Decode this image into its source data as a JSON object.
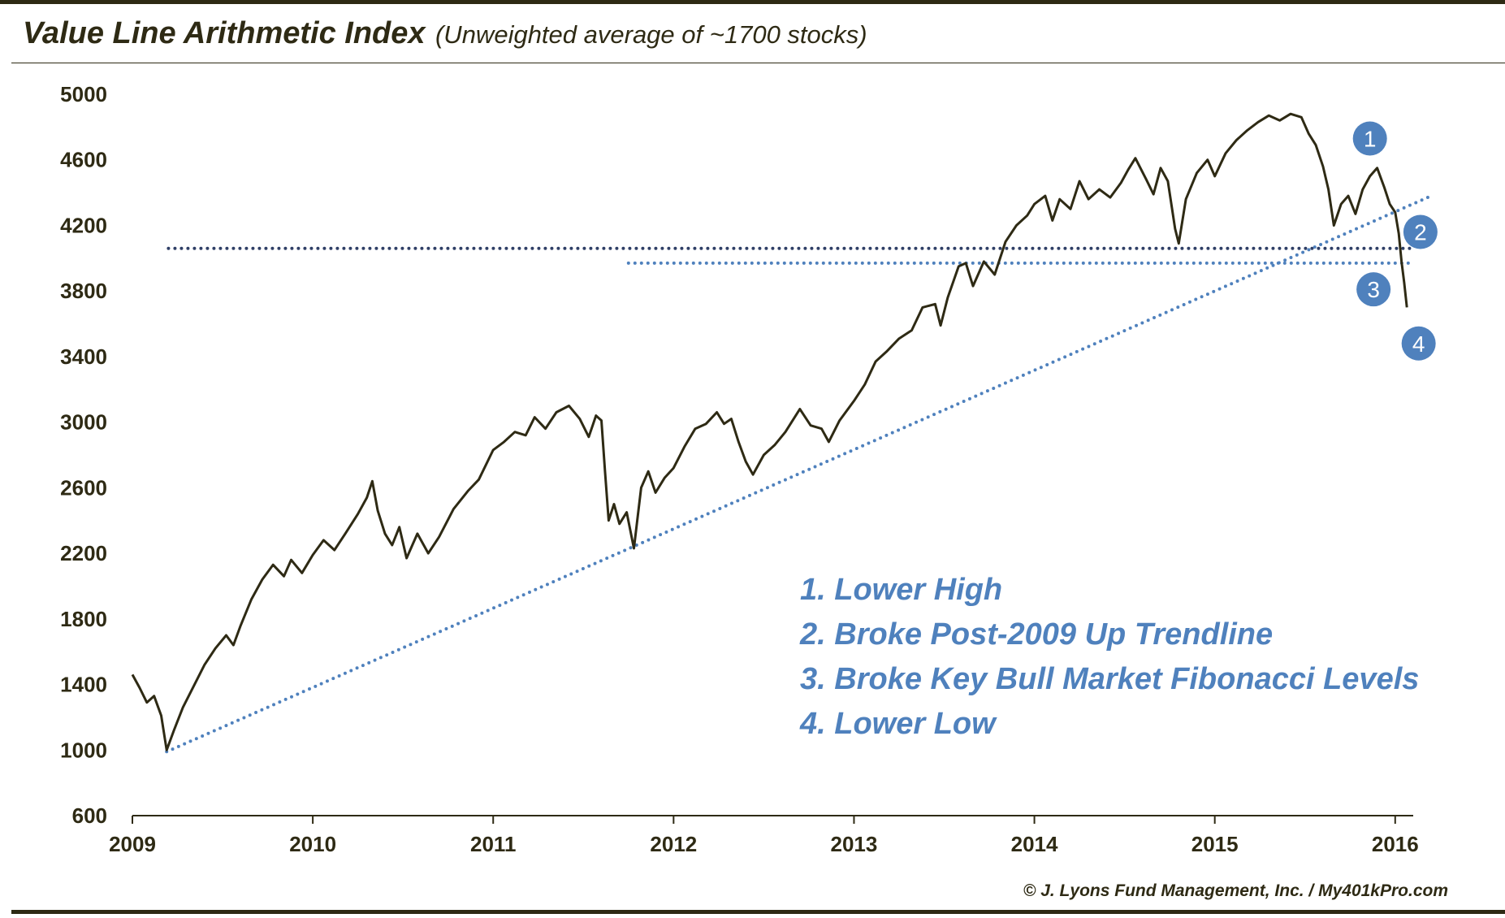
{
  "title": "Value Line Arithmetic Index",
  "subtitle": "(Unweighted average of ~1700 stocks)",
  "footer": "© J. Lyons Fund Management, Inc. / My401kPro.com",
  "colors": {
    "line": "#2e2a14",
    "accent": "#4f81bd",
    "dark_dots": "#2f3f66",
    "text": "#2e2a14"
  },
  "chart_data": {
    "type": "line",
    "title": "Value Line Arithmetic Index",
    "subtitle": "(Unweighted average of ~1700 stocks)",
    "xlabel": "",
    "ylabel": "",
    "xlim": [
      2009.0,
      2016.1
    ],
    "ylim": [
      600,
      5000
    ],
    "yticks": [
      600,
      1000,
      1400,
      1800,
      2200,
      2600,
      3000,
      3400,
      3800,
      4200,
      4600,
      5000
    ],
    "xticks": [
      "2009",
      "2010",
      "2011",
      "2012",
      "2013",
      "2014",
      "2015",
      "2016"
    ],
    "grid": false,
    "legend": "none",
    "series": [
      {
        "values": [
          [
            2009.0,
            1460
          ],
          [
            2009.04,
            1380
          ],
          [
            2009.08,
            1290
          ],
          [
            2009.12,
            1330
          ],
          [
            2009.16,
            1210
          ],
          [
            2009.19,
            1000
          ],
          [
            2009.23,
            1120
          ],
          [
            2009.28,
            1260
          ],
          [
            2009.34,
            1390
          ],
          [
            2009.4,
            1520
          ],
          [
            2009.46,
            1620
          ],
          [
            2009.52,
            1700
          ],
          [
            2009.56,
            1640
          ],
          [
            2009.6,
            1760
          ],
          [
            2009.66,
            1920
          ],
          [
            2009.72,
            2040
          ],
          [
            2009.78,
            2130
          ],
          [
            2009.84,
            2060
          ],
          [
            2009.88,
            2160
          ],
          [
            2009.94,
            2080
          ],
          [
            2010.0,
            2190
          ],
          [
            2010.06,
            2280
          ],
          [
            2010.12,
            2220
          ],
          [
            2010.18,
            2320
          ],
          [
            2010.25,
            2440
          ],
          [
            2010.3,
            2540
          ],
          [
            2010.33,
            2640
          ],
          [
            2010.36,
            2460
          ],
          [
            2010.4,
            2320
          ],
          [
            2010.44,
            2250
          ],
          [
            2010.48,
            2360
          ],
          [
            2010.52,
            2170
          ],
          [
            2010.58,
            2320
          ],
          [
            2010.64,
            2200
          ],
          [
            2010.7,
            2300
          ],
          [
            2010.78,
            2470
          ],
          [
            2010.86,
            2580
          ],
          [
            2010.92,
            2650
          ],
          [
            2011.0,
            2830
          ],
          [
            2011.06,
            2880
          ],
          [
            2011.12,
            2940
          ],
          [
            2011.18,
            2920
          ],
          [
            2011.23,
            3030
          ],
          [
            2011.29,
            2960
          ],
          [
            2011.35,
            3060
          ],
          [
            2011.42,
            3100
          ],
          [
            2011.48,
            3020
          ],
          [
            2011.53,
            2910
          ],
          [
            2011.57,
            3040
          ],
          [
            2011.6,
            3010
          ],
          [
            2011.62,
            2700
          ],
          [
            2011.64,
            2400
          ],
          [
            2011.67,
            2500
          ],
          [
            2011.7,
            2380
          ],
          [
            2011.74,
            2450
          ],
          [
            2011.78,
            2230
          ],
          [
            2011.82,
            2600
          ],
          [
            2011.86,
            2700
          ],
          [
            2011.9,
            2570
          ],
          [
            2011.95,
            2660
          ],
          [
            2012.0,
            2720
          ],
          [
            2012.06,
            2850
          ],
          [
            2012.12,
            2960
          ],
          [
            2012.18,
            2990
          ],
          [
            2012.24,
            3060
          ],
          [
            2012.28,
            2990
          ],
          [
            2012.32,
            3020
          ],
          [
            2012.36,
            2880
          ],
          [
            2012.4,
            2760
          ],
          [
            2012.44,
            2680
          ],
          [
            2012.5,
            2800
          ],
          [
            2012.56,
            2860
          ],
          [
            2012.62,
            2940
          ],
          [
            2012.7,
            3080
          ],
          [
            2012.76,
            2980
          ],
          [
            2012.82,
            2960
          ],
          [
            2012.86,
            2880
          ],
          [
            2012.92,
            3010
          ],
          [
            2013.0,
            3130
          ],
          [
            2013.06,
            3230
          ],
          [
            2013.12,
            3370
          ],
          [
            2013.18,
            3430
          ],
          [
            2013.25,
            3510
          ],
          [
            2013.32,
            3560
          ],
          [
            2013.38,
            3700
          ],
          [
            2013.45,
            3720
          ],
          [
            2013.48,
            3590
          ],
          [
            2013.52,
            3760
          ],
          [
            2013.58,
            3950
          ],
          [
            2013.62,
            3970
          ],
          [
            2013.66,
            3830
          ],
          [
            2013.72,
            3980
          ],
          [
            2013.78,
            3900
          ],
          [
            2013.84,
            4100
          ],
          [
            2013.9,
            4200
          ],
          [
            2013.96,
            4260
          ],
          [
            2014.0,
            4330
          ],
          [
            2014.06,
            4380
          ],
          [
            2014.1,
            4230
          ],
          [
            2014.14,
            4360
          ],
          [
            2014.2,
            4300
          ],
          [
            2014.25,
            4470
          ],
          [
            2014.3,
            4360
          ],
          [
            2014.36,
            4420
          ],
          [
            2014.42,
            4370
          ],
          [
            2014.48,
            4460
          ],
          [
            2014.52,
            4540
          ],
          [
            2014.56,
            4610
          ],
          [
            2014.62,
            4480
          ],
          [
            2014.66,
            4390
          ],
          [
            2014.7,
            4550
          ],
          [
            2014.74,
            4470
          ],
          [
            2014.78,
            4180
          ],
          [
            2014.8,
            4090
          ],
          [
            2014.84,
            4360
          ],
          [
            2014.9,
            4520
          ],
          [
            2014.96,
            4600
          ],
          [
            2015.0,
            4500
          ],
          [
            2015.06,
            4640
          ],
          [
            2015.12,
            4720
          ],
          [
            2015.18,
            4780
          ],
          [
            2015.24,
            4830
          ],
          [
            2015.3,
            4870
          ],
          [
            2015.36,
            4840
          ],
          [
            2015.42,
            4880
          ],
          [
            2015.48,
            4860
          ],
          [
            2015.52,
            4760
          ],
          [
            2015.56,
            4690
          ],
          [
            2015.6,
            4560
          ],
          [
            2015.63,
            4420
          ],
          [
            2015.66,
            4200
          ],
          [
            2015.7,
            4330
          ],
          [
            2015.74,
            4380
          ],
          [
            2015.78,
            4270
          ],
          [
            2015.82,
            4420
          ],
          [
            2015.86,
            4500
          ],
          [
            2015.9,
            4550
          ],
          [
            2015.94,
            4430
          ],
          [
            2015.97,
            4330
          ],
          [
            2016.0,
            4280
          ],
          [
            2016.02,
            4150
          ],
          [
            2016.035,
            3980
          ],
          [
            2016.05,
            3850
          ],
          [
            2016.065,
            3700
          ]
        ]
      }
    ],
    "annotations": [
      {
        "label": "1",
        "x": 2015.86,
        "y": 4730
      },
      {
        "label": "2",
        "x": 2016.14,
        "y": 4160
      },
      {
        "label": "3",
        "x": 2015.88,
        "y": 3810
      },
      {
        "label": "4",
        "x": 2016.13,
        "y": 3480
      }
    ],
    "reference_lines": [
      {
        "kind": "horizontal",
        "y": 4060,
        "x_start": 2009.2,
        "x_end": 2016.1,
        "color": "#2f3f66"
      },
      {
        "kind": "horizontal",
        "y": 3970,
        "x_start": 2011.75,
        "x_end": 2016.1,
        "color": "#4f81bd"
      },
      {
        "kind": "trendline",
        "x_start": 2009.19,
        "y_start": 990,
        "x_end": 2016.2,
        "y_end": 4380,
        "color": "#4f81bd"
      }
    ],
    "notes": [
      "1.  Lower High",
      "2.  Broke Post-2009 Up Trendline",
      "3.  Broke Key Bull Market Fibonacci Levels",
      "4.  Lower Low"
    ]
  }
}
